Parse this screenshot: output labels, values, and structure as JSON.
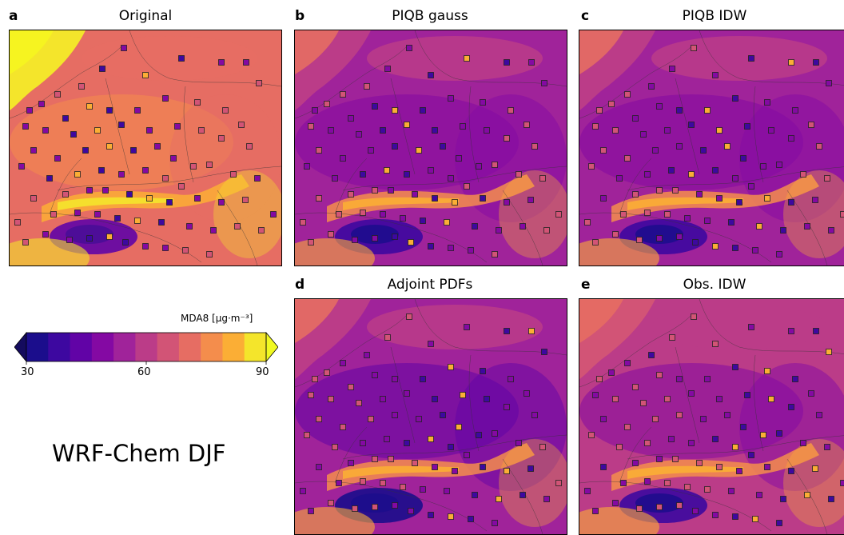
{
  "panels": [
    {
      "letter": "a",
      "title": "Original",
      "palette": "orig"
    },
    {
      "letter": "b",
      "title": "PIQB gauss",
      "palette": "model"
    },
    {
      "letter": "c",
      "title": "PIQB IDW",
      "palette": "model"
    },
    {
      "letter": "d",
      "title": "Adjoint PDFs",
      "palette": "adjoint"
    },
    {
      "letter": "e",
      "title": "Obs. IDW",
      "palette": "obs"
    }
  ],
  "colorbar": {
    "label": "MDA8 [μg·m⁻³]",
    "min": 30,
    "max": 90,
    "ticks": [
      "30",
      "60",
      "90"
    ],
    "colors": [
      "#1b0d8c",
      "#3d08a0",
      "#6103a6",
      "#8409a3",
      "#a0239a",
      "#bb3c88",
      "#d25476",
      "#e66d63",
      "#f48d4c",
      "#fbae35",
      "#f4e52b"
    ],
    "extend_low": "#140b5e",
    "extend_high": "#f0f921"
  },
  "figure_title": "WRF-Chem DJF"
}
